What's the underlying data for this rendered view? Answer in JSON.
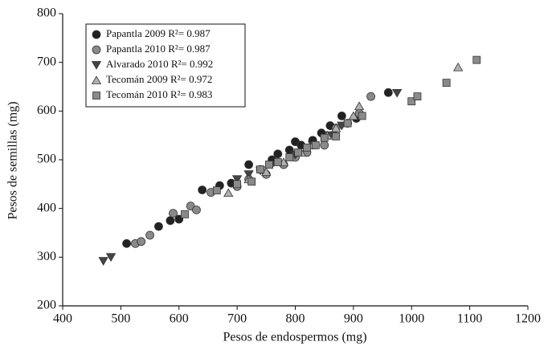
{
  "chart_data": {
    "type": "scatter",
    "x_label": "Pesos de endospermos (mg)",
    "y_label": "Pesos de semillas (mg)",
    "xlim": [
      400,
      1200
    ],
    "xticks": [
      400,
      500,
      600,
      700,
      800,
      900,
      1000,
      1100,
      1200
    ],
    "ylim": [
      200,
      800
    ],
    "yticks": [
      200,
      300,
      400,
      500,
      600,
      700,
      800
    ],
    "legend": "top-left",
    "series": [
      {
        "name": "Papantla 2009 R²= 0.987",
        "color": "#222222",
        "marker": "circle",
        "x": [
          510,
          565,
          585,
          600,
          640,
          670,
          690,
          720,
          740,
          760,
          770,
          790,
          800,
          810,
          830,
          845,
          860,
          880,
          905,
          960
        ],
        "values": [
          328,
          363,
          375,
          378,
          438,
          447,
          452,
          490,
          480,
          500,
          512,
          520,
          537,
          530,
          540,
          555,
          570,
          590,
          585,
          638
        ]
      },
      {
        "name": "Papantla 2010 R²= 0.987",
        "color": "#8a8a8a",
        "marker": "circle",
        "x": [
          525,
          535,
          550,
          590,
          620,
          630,
          655,
          700,
          720,
          750,
          780,
          800,
          820,
          850,
          870,
          890,
          910,
          930
        ],
        "values": [
          328,
          332,
          345,
          390,
          405,
          397,
          433,
          445,
          460,
          470,
          490,
          505,
          515,
          530,
          565,
          575,
          595,
          630
        ]
      },
      {
        "name": "Alvarado 2010 R²= 0.992",
        "color": "#444444",
        "marker": "triangle-down",
        "x": [
          470,
          483,
          700,
          720,
          740,
          760,
          800,
          830,
          860,
          880,
          975
        ],
        "values": [
          292,
          300,
          460,
          470,
          478,
          490,
          510,
          530,
          550,
          570,
          637
        ]
      },
      {
        "name": "Tecomán 2009 R²= 0.972",
        "color": "#b0b0b0",
        "marker": "triangle-up",
        "x": [
          685,
          720,
          750,
          780,
          810,
          830,
          855,
          870,
          900,
          910,
          1080
        ],
        "values": [
          432,
          460,
          475,
          495,
          515,
          530,
          550,
          565,
          590,
          610,
          690
        ]
      },
      {
        "name": "Tecomán 2010 R²= 0.983",
        "color": "#8a8a8a",
        "marker": "square",
        "x": [
          610,
          665,
          700,
          725,
          740,
          755,
          770,
          790,
          805,
          820,
          835,
          850,
          870,
          890,
          915,
          1000,
          1010,
          1060,
          1112
        ],
        "values": [
          388,
          437,
          450,
          455,
          480,
          490,
          495,
          505,
          515,
          525,
          530,
          545,
          548,
          575,
          590,
          620,
          630,
          658,
          705
        ]
      }
    ]
  }
}
